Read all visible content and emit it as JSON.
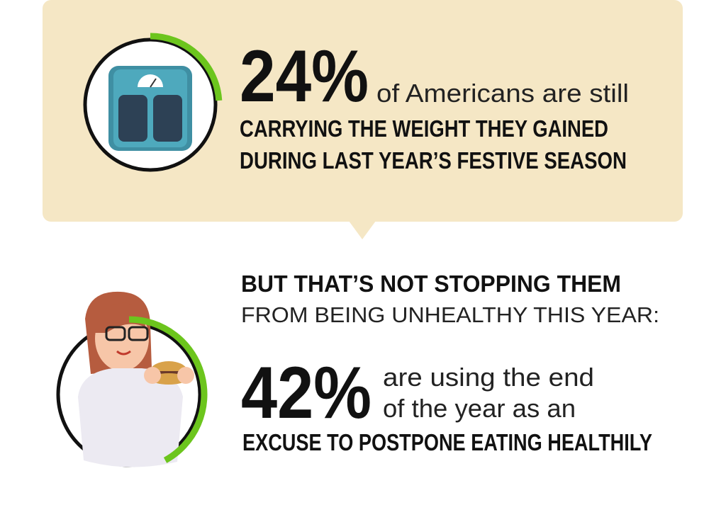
{
  "stats": [
    {
      "value": 24,
      "value_label": "24%",
      "lead": "of Americans are still",
      "lines": [
        "CARRYING THE WEIGHT THEY GAINED",
        "DURING LAST YEAR’S FESTIVE SEASON"
      ]
    },
    {
      "value": 42,
      "value_label": "42%",
      "lead_lines": [
        "are using the end",
        "of the year as an"
      ],
      "lines": [
        "EXCUSE TO POSTPONE EATING HEALTHILY"
      ]
    }
  ],
  "transition": {
    "headline": "BUT THAT’S NOT STOPPING THEM",
    "subline": "FROM BEING UNHEALTHY THIS YEAR:"
  }
}
